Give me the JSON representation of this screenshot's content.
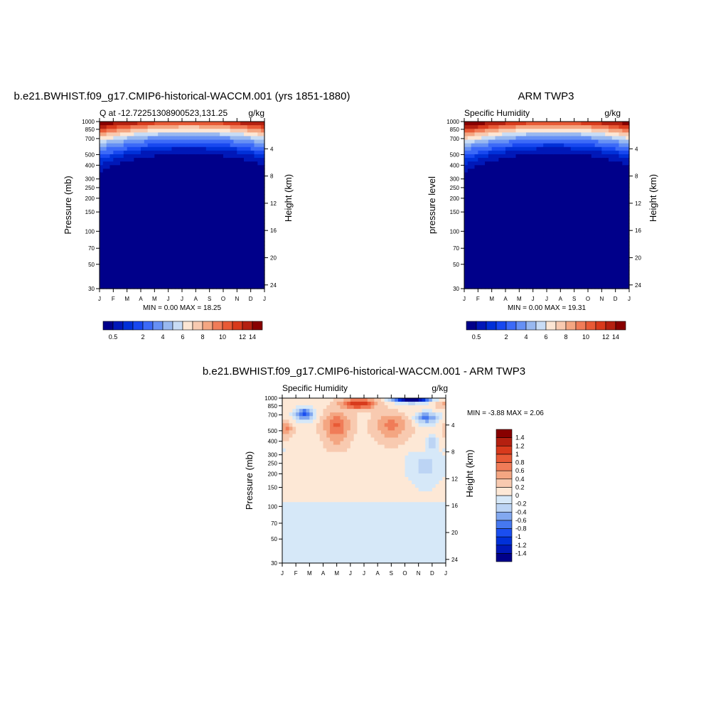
{
  "palettes": {
    "absolute": [
      "#00008a",
      "#0018b8",
      "#0030d8",
      "#1848f0",
      "#3c6af8",
      "#6690f5",
      "#98b8f0",
      "#c8dcf5",
      "#fce6d4",
      "#f8cab0",
      "#f4a682",
      "#f07c58",
      "#e85a36",
      "#d83a1c",
      "#b42010",
      "#880000"
    ],
    "difference": [
      "#00008a",
      "#0018b8",
      "#0030d8",
      "#1a4ef0",
      "#4678f0",
      "#82a8f0",
      "#bcd4f4",
      "#d6e8f8",
      "#fde8d6",
      "#f8cab0",
      "#f4a682",
      "#f07c58",
      "#e85a36",
      "#d83a1c",
      "#b42010",
      "#880000"
    ]
  },
  "chart_data": [
    {
      "id": "model",
      "type": "heatmap",
      "title": "b.e21.BWHIST.f09_g17.CMIP6-historical-WACCM.001 (yrs 1851-1880)",
      "left_subtitle": "Q at -12.72251308900523,131.25",
      "right_subtitle": "g/kg",
      "ylabel": "Pressure (mb)",
      "ylabel_right": "Height (km)",
      "x_ticks": [
        "J",
        "F",
        "M",
        "A",
        "M",
        "J",
        "J",
        "A",
        "S",
        "O",
        "N",
        "D",
        "J"
      ],
      "y_ticks": [
        "30",
        "50",
        "70",
        "100",
        "150",
        "200",
        "250",
        "300",
        "400",
        "500",
        "700",
        "850",
        "1000"
      ],
      "y_ticks_right": [
        "24",
        "20",
        "16",
        "12",
        "8",
        "4"
      ],
      "stats": "MIN =   0.00 MAX =  18.25",
      "x_months": [
        0,
        1,
        2,
        3,
        4,
        5,
        6,
        7,
        8,
        9,
        10,
        11,
        12
      ],
      "y_pressure": [
        1000,
        850,
        700,
        500,
        400,
        300,
        250,
        200,
        150,
        100,
        70,
        50,
        30
      ],
      "ylim": [
        1000,
        30
      ],
      "colorbar_orientation": "horizontal",
      "levels": [
        0.5,
        1,
        1.5,
        2,
        3,
        4,
        5,
        6,
        7,
        8,
        9,
        10,
        11,
        12,
        14
      ],
      "colorbar_labels": [
        "0.5",
        "2",
        "4",
        "6",
        "8",
        "10",
        "12",
        "14"
      ],
      "colorbar_label_index": [
        0,
        3,
        5,
        7,
        9,
        11,
        13,
        14
      ]
    },
    {
      "id": "obs",
      "type": "heatmap",
      "title": "ARM TWP3",
      "left_subtitle": "Specific Humidity",
      "right_subtitle": "g/kg",
      "ylabel": "pressure level",
      "ylabel_right": "Height (km)",
      "x_ticks": [
        "J",
        "F",
        "M",
        "A",
        "M",
        "J",
        "J",
        "A",
        "S",
        "O",
        "N",
        "D",
        "J"
      ],
      "y_ticks": [
        "30",
        "50",
        "70",
        "100",
        "150",
        "200",
        "250",
        "300",
        "400",
        "500",
        "700",
        "850",
        "1000"
      ],
      "y_ticks_right": [
        "24",
        "20",
        "16",
        "12",
        "8",
        "4"
      ],
      "stats": "MIN =   0.00 MAX =  19.31",
      "x_months": [
        0,
        1,
        2,
        3,
        4,
        5,
        6,
        7,
        8,
        9,
        10,
        11,
        12
      ],
      "y_pressure": [
        1000,
        850,
        700,
        500,
        400,
        300,
        250,
        200,
        150,
        100,
        70,
        50,
        30
      ],
      "ylim": [
        1000,
        30
      ],
      "colorbar_orientation": "horizontal",
      "levels": [
        0.5,
        1,
        1.5,
        2,
        3,
        4,
        5,
        6,
        7,
        8,
        9,
        10,
        11,
        12,
        14
      ],
      "colorbar_labels": [
        "0.5",
        "2",
        "4",
        "6",
        "8",
        "10",
        "12",
        "14"
      ],
      "colorbar_label_index": [
        0,
        3,
        5,
        7,
        9,
        11,
        13,
        14
      ]
    },
    {
      "id": "diff",
      "type": "heatmap",
      "title": "b.e21.BWHIST.f09_g17.CMIP6-historical-WACCM.001 - ARM TWP3",
      "left_subtitle": "Specific Humidity",
      "right_subtitle": "g/kg",
      "ylabel": "Pressure (mb)",
      "ylabel_right": "Height (km)",
      "x_ticks": [
        "J",
        "F",
        "M",
        "A",
        "M",
        "J",
        "J",
        "A",
        "S",
        "O",
        "N",
        "D",
        "J"
      ],
      "y_ticks": [
        "30",
        "50",
        "70",
        "100",
        "150",
        "200",
        "250",
        "300",
        "400",
        "500",
        "700",
        "850",
        "1000"
      ],
      "y_ticks_right": [
        "24",
        "20",
        "16",
        "12",
        "8",
        "4"
      ],
      "stats": "MIN =  -3.88 MAX =   2.06",
      "x_months": [
        0,
        1,
        2,
        3,
        4,
        5,
        6,
        7,
        8,
        9,
        10,
        11,
        12
      ],
      "y_pressure": [
        1000,
        850,
        700,
        500,
        400,
        300,
        250,
        200,
        150,
        100,
        70,
        50,
        30
      ],
      "ylim": [
        1000,
        30
      ],
      "colorbar_orientation": "vertical",
      "levels": [
        -1.4,
        -1.2,
        -1,
        -0.8,
        -0.6,
        -0.4,
        -0.2,
        0,
        0.2,
        0.4,
        0.6,
        0.8,
        1,
        1.2,
        1.4
      ],
      "colorbar_labels": [
        "-1.4",
        "-1.2",
        "-1",
        "-0.8",
        "-0.6",
        "-0.4",
        "-0.2",
        "0",
        "0.2",
        "0.4",
        "0.6",
        "0.8",
        "1",
        "1.2",
        "1.4"
      ],
      "colorbar_label_index": [
        0,
        1,
        2,
        3,
        4,
        5,
        6,
        7,
        8,
        9,
        10,
        11,
        12,
        13,
        14
      ]
    }
  ]
}
